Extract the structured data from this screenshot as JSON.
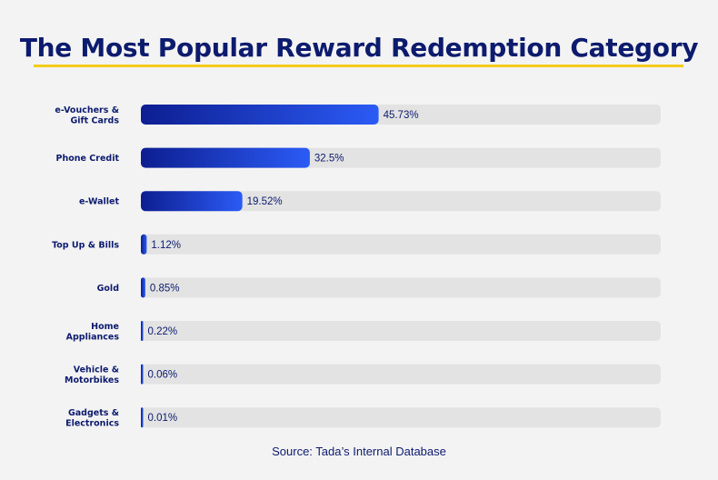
{
  "chart_data": {
    "type": "bar",
    "orientation": "horizontal",
    "title": "The Most Popular Reward Redemption Category",
    "categories": [
      [
        "e-Vouchers &",
        "Gift Cards"
      ],
      [
        "Phone Credit"
      ],
      [
        "e-Wallet"
      ],
      [
        "Top Up & Bills"
      ],
      [
        "Gold"
      ],
      [
        "Home",
        "Appliances"
      ],
      [
        "Vehicle &",
        "Motorbikes"
      ],
      [
        "Gadgets &",
        "Electronics"
      ]
    ],
    "values": [
      45.73,
      32.5,
      19.52,
      1.12,
      0.85,
      0.22,
      0.06,
      0.01
    ],
    "value_labels": [
      "45.73%",
      "32.5%",
      "19.52%",
      "1.12%",
      "0.85%",
      "0.22%",
      "0.06%",
      "0.01%"
    ],
    "xlim": [
      0,
      100
    ],
    "colors": {
      "bar_start": "#0d1e91",
      "bar_end": "#2b5bf5",
      "track": "#e3e3e3",
      "accent": "#f2cc1c",
      "text": "#0d1b6e"
    }
  },
  "source": "Source: Tada’s Internal Database"
}
